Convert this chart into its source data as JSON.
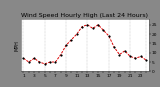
{
  "title": "Wind Speed Hourly High (Last 24 Hours)",
  "ylabel_left": "MPH",
  "hours": [
    0,
    1,
    2,
    3,
    4,
    5,
    6,
    7,
    8,
    9,
    10,
    11,
    12,
    13,
    14,
    15,
    16,
    17,
    18,
    19,
    20,
    21,
    22,
    23
  ],
  "values": [
    7,
    5,
    7,
    5,
    4,
    5,
    5,
    9,
    14,
    17,
    20,
    24,
    25,
    23,
    25,
    22,
    19,
    13,
    9,
    11,
    8,
    7,
    8,
    6
  ],
  "ylim": [
    0,
    28
  ],
  "line_color": "#dd0000",
  "marker_color": "#000000",
  "bg_color": "#888888",
  "plot_bg": "#ffffff",
  "grid_color": "#cccccc",
  "title_fontsize": 4.5,
  "tick_fontsize": 3.2,
  "ylabel_fontsize": 3.5,
  "yticks": [
    0,
    5,
    10,
    15,
    20,
    25
  ]
}
